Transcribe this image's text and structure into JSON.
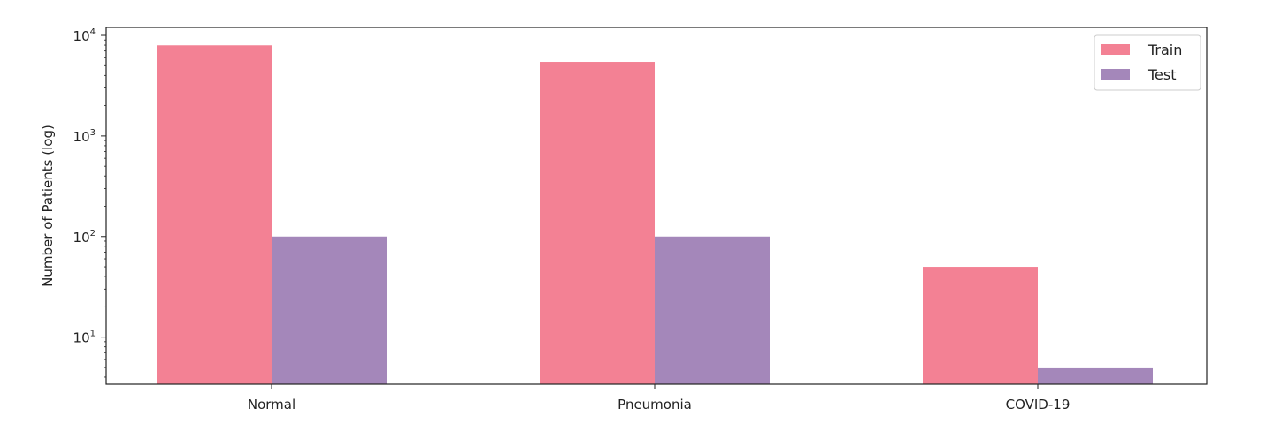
{
  "chart_data": {
    "type": "bar",
    "ylabel": "Number of Patients (log)",
    "yscale": "log",
    "ylim": [
      3.4,
      12000
    ],
    "yticks": [
      {
        "value": 10,
        "base": "10",
        "exp": "1"
      },
      {
        "value": 100,
        "base": "10",
        "exp": "2"
      },
      {
        "value": 1000,
        "base": "10",
        "exp": "3"
      },
      {
        "value": 10000,
        "base": "10",
        "exp": "4"
      }
    ],
    "categories": [
      "Normal",
      "Pneumonia",
      "COVID-19"
    ],
    "series": [
      {
        "name": "Train",
        "color": "#f38194",
        "values": [
          7966,
          5451,
          50
        ]
      },
      {
        "name": "Test",
        "color": "#a487ba",
        "values": [
          100,
          100,
          5
        ]
      }
    ],
    "legend": "top-right",
    "grid": false
  }
}
